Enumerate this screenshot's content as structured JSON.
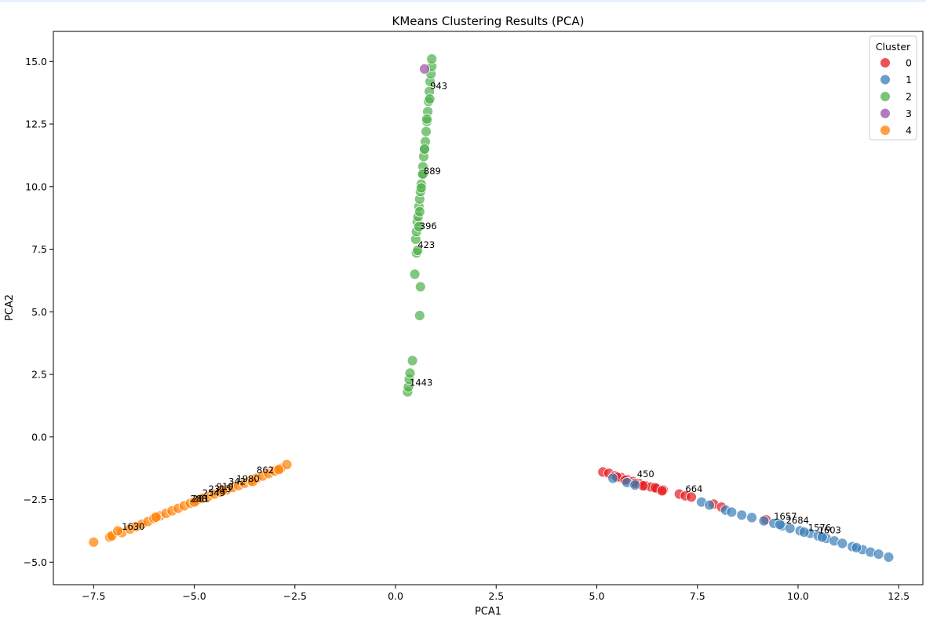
{
  "chart_data": {
    "type": "scatter",
    "title": "KMeans Clustering Results (PCA)",
    "xlabel": "PCA1",
    "ylabel": "PCA2",
    "xlim": [
      -8.5,
      13.1
    ],
    "ylim": [
      -5.9,
      16.2
    ],
    "xticks": [
      -7.5,
      -5.0,
      -2.5,
      0.0,
      2.5,
      5.0,
      7.5,
      10.0,
      12.5
    ],
    "xtick_labels": [
      "−7.5",
      "−5.0",
      "−2.5",
      "0.0",
      "2.5",
      "5.0",
      "7.5",
      "10.0",
      "12.5"
    ],
    "yticks": [
      -5.0,
      -2.5,
      0.0,
      2.5,
      5.0,
      7.5,
      10.0,
      12.5,
      15.0
    ],
    "ytick_labels": [
      "−5.0",
      "−2.5",
      "0.0",
      "2.5",
      "5.0",
      "7.5",
      "10.0",
      "12.5",
      "15.0"
    ],
    "grid": false,
    "legend": {
      "title": "Cluster",
      "position": "top-right",
      "entries": [
        {
          "label": "0",
          "color": "#e41a1c"
        },
        {
          "label": "1",
          "color": "#377eb8"
        },
        {
          "label": "2",
          "color": "#4daf4a"
        },
        {
          "label": "3",
          "color": "#984ea3"
        },
        {
          "label": "4",
          "color": "#ff7f00"
        }
      ]
    },
    "series": [
      {
        "name": "0",
        "color": "#e41a1c",
        "x": [
          5.15,
          5.3,
          5.45,
          5.6,
          5.75,
          5.9,
          6.05,
          6.2,
          6.35,
          6.5,
          6.65,
          5.5,
          5.7,
          5.95,
          6.15,
          6.45,
          6.62,
          7.05,
          7.2,
          7.35,
          7.9,
          8.1,
          9.2
        ],
        "y": [
          -1.4,
          -1.45,
          -1.55,
          -1.62,
          -1.7,
          -1.78,
          -1.86,
          -1.94,
          -2.0,
          -2.06,
          -2.12,
          -1.6,
          -1.72,
          -1.85,
          -1.95,
          -2.03,
          -2.15,
          -2.28,
          -2.35,
          -2.4,
          -2.68,
          -2.8,
          -3.3
        ]
      },
      {
        "name": "1",
        "color": "#377eb8",
        "x": [
          5.4,
          5.75,
          5.95,
          7.6,
          7.8,
          8.2,
          8.35,
          8.6,
          8.85,
          9.15,
          9.4,
          9.6,
          9.8,
          10.05,
          10.3,
          10.5,
          10.7,
          10.9,
          11.1,
          11.35,
          11.6,
          11.8,
          12.0,
          12.25,
          9.55,
          10.15,
          10.6,
          11.45
        ],
        "y": [
          -1.65,
          -1.82,
          -1.92,
          -2.6,
          -2.72,
          -2.92,
          -3.0,
          -3.12,
          -3.22,
          -3.35,
          -3.45,
          -3.55,
          -3.65,
          -3.75,
          -3.85,
          -3.95,
          -4.05,
          -4.15,
          -4.25,
          -4.38,
          -4.5,
          -4.6,
          -4.68,
          -4.8,
          -3.5,
          -3.8,
          -4.0,
          -4.42
        ]
      },
      {
        "name": "2",
        "color": "#4daf4a",
        "x": [
          0.3,
          0.32,
          0.34,
          0.36,
          0.42,
          0.48,
          0.52,
          0.55,
          0.6,
          0.62,
          0.5,
          0.52,
          0.54,
          0.56,
          0.58,
          0.6,
          0.62,
          0.64,
          0.66,
          0.68,
          0.7,
          0.72,
          0.74,
          0.76,
          0.78,
          0.8,
          0.82,
          0.84,
          0.86,
          0.88,
          0.9,
          0.9,
          0.58,
          0.6,
          0.64,
          0.68,
          0.72,
          0.78,
          0.85
        ],
        "y": [
          1.8,
          2.0,
          2.3,
          2.55,
          3.05,
          6.5,
          7.35,
          7.45,
          4.85,
          6.0,
          7.9,
          8.2,
          8.6,
          8.8,
          9.2,
          9.5,
          9.8,
          10.1,
          10.5,
          10.8,
          11.2,
          11.5,
          11.8,
          12.2,
          12.6,
          13.0,
          13.4,
          13.8,
          14.2,
          14.5,
          14.8,
          15.1,
          8.4,
          9.0,
          9.95,
          10.5,
          11.5,
          12.7,
          13.5
        ]
      },
      {
        "name": "3",
        "color": "#984ea3",
        "x": [
          0.72
        ],
        "y": [
          14.7
        ]
      },
      {
        "name": "4",
        "color": "#ff7f00",
        "x": [
          -7.5,
          -7.1,
          -7.05,
          -6.8,
          -6.6,
          -6.45,
          -6.3,
          -6.15,
          -6.0,
          -5.85,
          -5.7,
          -5.55,
          -5.4,
          -5.25,
          -5.1,
          -4.95,
          -4.8,
          -4.65,
          -4.5,
          -4.35,
          -4.2,
          -4.05,
          -3.9,
          -3.75,
          -3.6,
          -3.45,
          -3.3,
          -3.15,
          -3.0,
          -2.85,
          -2.7,
          -6.9,
          -5.95,
          -5.0,
          -4.3,
          -3.55,
          -2.9
        ],
        "y": [
          -4.2,
          -4.0,
          -3.95,
          -3.82,
          -3.68,
          -3.58,
          -3.48,
          -3.38,
          -3.25,
          -3.15,
          -3.05,
          -2.95,
          -2.85,
          -2.75,
          -2.65,
          -2.55,
          -2.45,
          -2.38,
          -2.28,
          -2.2,
          -2.12,
          -2.02,
          -1.94,
          -1.85,
          -1.75,
          -1.65,
          -1.56,
          -1.46,
          -1.36,
          -1.25,
          -1.1,
          -3.75,
          -3.2,
          -2.6,
          -2.15,
          -1.78,
          -1.3
        ]
      }
    ],
    "annotations": [
      {
        "text": "943",
        "x": 0.86,
        "y": 13.9
      },
      {
        "text": "889",
        "x": 0.7,
        "y": 10.5
      },
      {
        "text": "396",
        "x": 0.6,
        "y": 8.3
      },
      {
        "text": "423",
        "x": 0.55,
        "y": 7.55
      },
      {
        "text": "1443",
        "x": 0.35,
        "y": 2.05
      },
      {
        "text": "862",
        "x": -3.45,
        "y": -1.45
      },
      {
        "text": "1980",
        "x": -3.95,
        "y": -1.8
      },
      {
        "text": "342",
        "x": -4.15,
        "y": -1.9
      },
      {
        "text": "919",
        "x": -4.45,
        "y": -2.1
      },
      {
        "text": "2315",
        "x": -4.65,
        "y": -2.2
      },
      {
        "text": "2549",
        "x": -4.8,
        "y": -2.35
      },
      {
        "text": "288",
        "x": -5.1,
        "y": -2.6
      },
      {
        "text": "281",
        "x": -5.05,
        "y": -2.6
      },
      {
        "text": "1630",
        "x": -6.8,
        "y": -3.7
      },
      {
        "text": "450",
        "x": 6.0,
        "y": -1.6
      },
      {
        "text": "664",
        "x": 7.2,
        "y": -2.2
      },
      {
        "text": "1657",
        "x": 9.4,
        "y": -3.3
      },
      {
        "text": "2684",
        "x": 9.7,
        "y": -3.45
      },
      {
        "text": "1576",
        "x": 10.25,
        "y": -3.75
      },
      {
        "text": "1603",
        "x": 10.5,
        "y": -3.85
      }
    ]
  }
}
